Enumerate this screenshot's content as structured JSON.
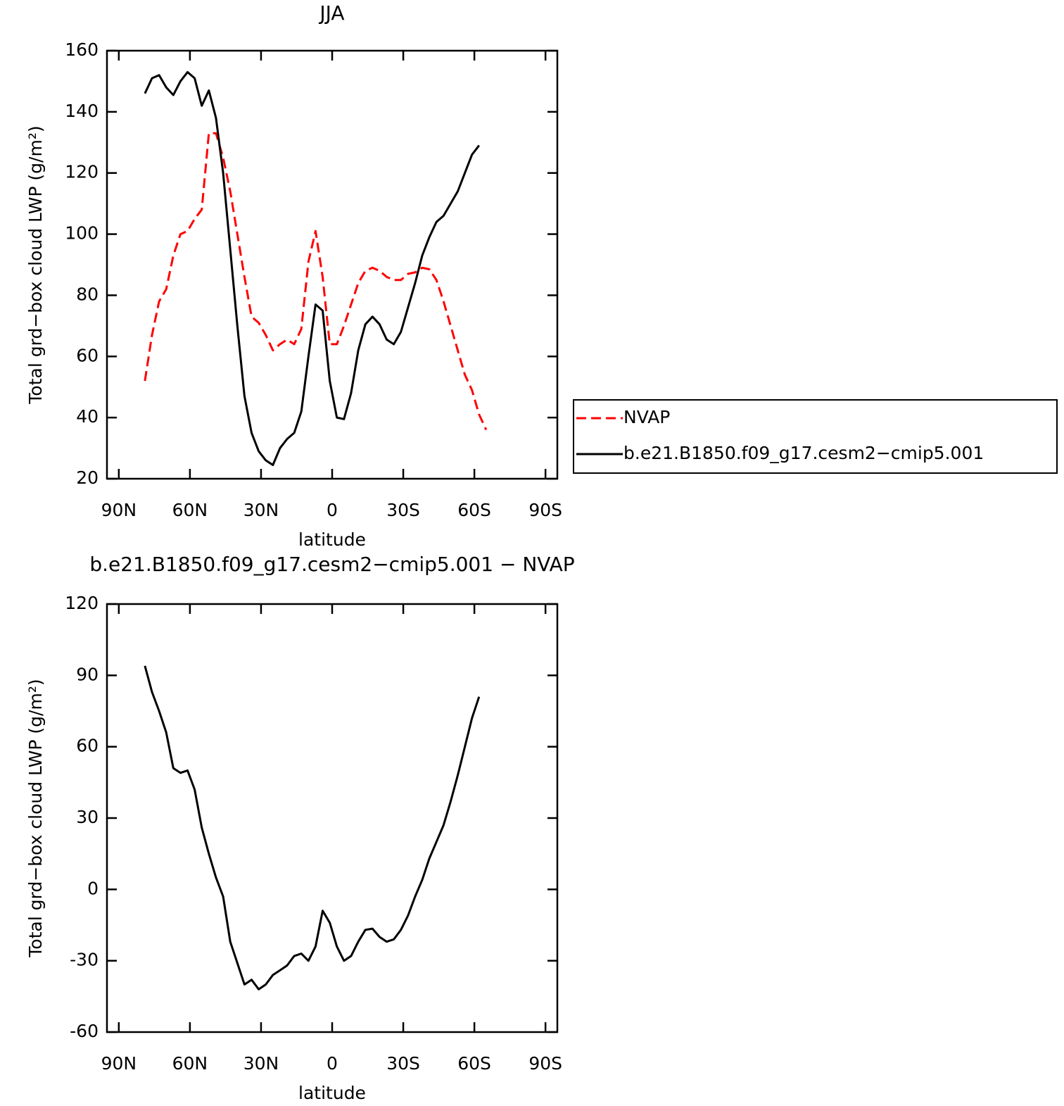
{
  "chart_data": [
    {
      "type": "line",
      "title": "JJA",
      "xlabel": "latitude",
      "ylabel": "Total grd−box cloud LWP (g/m²)",
      "x": [
        79,
        76,
        73,
        70,
        67,
        64,
        61,
        58,
        55,
        52,
        49,
        46,
        43,
        40,
        37,
        34,
        31,
        28,
        25,
        22,
        19,
        16,
        13,
        10,
        7,
        4,
        1,
        -2,
        -5,
        -8,
        -11,
        -14,
        -17,
        -20,
        -23,
        -26,
        -29,
        -32,
        -35,
        -38,
        -41,
        -44,
        -47,
        -50,
        -53,
        -56,
        -59,
        -62,
        -65
      ],
      "series": [
        {
          "name": "NVAP",
          "color": "#ff0000",
          "style": "dashed",
          "values": [
            52,
            67,
            78,
            82,
            93,
            100,
            101,
            105,
            108,
            133,
            133,
            125,
            114,
            100,
            86,
            73,
            71,
            67,
            62,
            64,
            65.5,
            64,
            69,
            91,
            101,
            86,
            64,
            64,
            70,
            77,
            84,
            88,
            89,
            88,
            86,
            85,
            85,
            87,
            87.5,
            89,
            88.5,
            85,
            78,
            70,
            62,
            54,
            49,
            41,
            36
          ]
        },
        {
          "name": "b.e21.B1850.f09_g17.cesm2−cmip5.001",
          "color": "#000000",
          "style": "solid",
          "values": [
            146,
            151,
            152,
            148,
            145.5,
            150,
            153,
            151,
            142,
            147,
            138,
            120,
            95,
            70,
            47,
            35,
            29,
            26,
            24.5,
            30,
            33,
            35,
            42,
            60,
            77,
            75,
            52,
            40,
            39.5,
            48,
            62,
            70.5,
            73,
            70.5,
            65.5,
            64,
            68,
            76,
            84,
            93,
            99,
            104,
            106,
            110,
            114,
            120,
            126,
            129,
            null
          ]
        }
      ],
      "xlim": [
        95,
        -95
      ],
      "xticks": [
        {
          "value": 90,
          "label": "90N"
        },
        {
          "value": 60,
          "label": "60N"
        },
        {
          "value": 30,
          "label": "30N"
        },
        0,
        {
          "value": -30,
          "label": "30S"
        },
        {
          "value": -60,
          "label": "60S"
        },
        {
          "value": -90,
          "label": "90S"
        }
      ],
      "ylim": [
        20,
        160
      ],
      "yticks": [
        20,
        40,
        60,
        80,
        100,
        120,
        140,
        160
      ],
      "legend": "right"
    },
    {
      "type": "line",
      "title": "b.e21.B1850.f09_g17.cesm2−cmip5.001 − NVAP",
      "xlabel": "latitude",
      "ylabel": "Total grd−box cloud LWP (g/m²)",
      "x": [
        79,
        76,
        73,
        70,
        67,
        64,
        61,
        58,
        55,
        52,
        49,
        46,
        43,
        40,
        37,
        34,
        31,
        28,
        25,
        22,
        19,
        16,
        13,
        10,
        7,
        4,
        1,
        -2,
        -5,
        -8,
        -11,
        -14,
        -17,
        -20,
        -23,
        -26,
        -29,
        -32,
        -35,
        -38,
        -41,
        -44,
        -47,
        -50,
        -53,
        -56,
        -59,
        -62,
        -65
      ],
      "series": [
        {
          "color": "#000000",
          "style": "solid",
          "values": [
            94,
            83,
            75,
            66,
            51,
            49,
            50,
            42,
            26,
            15,
            5,
            -3,
            -22,
            -31,
            -40,
            -38,
            -42,
            -40,
            -36,
            -34,
            -32,
            -28,
            -27,
            -30,
            -24,
            -9,
            -14,
            -24,
            -30,
            -28,
            -22,
            -17,
            -16.5,
            -20,
            -22,
            -21,
            -17,
            -11,
            -3,
            4,
            13,
            20,
            27,
            37,
            48,
            60,
            72,
            81,
            null
          ]
        }
      ],
      "xlim": [
        95,
        -95
      ],
      "xticks": [
        {
          "value": 90,
          "label": "90N"
        },
        {
          "value": 60,
          "label": "60N"
        },
        {
          "value": 30,
          "label": "30N"
        },
        0,
        {
          "value": -30,
          "label": "30S"
        },
        {
          "value": -60,
          "label": "60S"
        },
        {
          "value": -90,
          "label": "90S"
        }
      ],
      "ylim": [
        -60,
        120
      ],
      "yticks": [
        -60,
        -30,
        0,
        30,
        60,
        90,
        120
      ]
    }
  ]
}
